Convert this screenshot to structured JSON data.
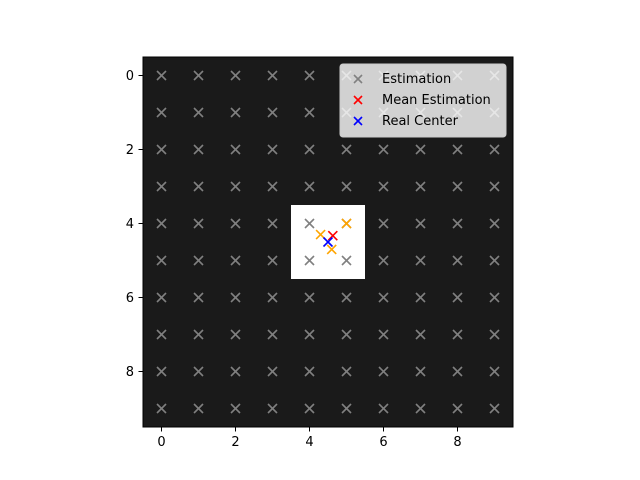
{
  "chart_data": {
    "type": "scatter",
    "title": "",
    "xlabel": "",
    "ylabel": "",
    "xlim": [
      -0.5,
      9.5
    ],
    "ylim": [
      9.5,
      -0.5
    ],
    "y_inverted": true,
    "grid": false,
    "background": {
      "type": "image",
      "rows": 10,
      "cols": 10,
      "base_color": "#1a1a1a",
      "highlight_color": "#ffffff",
      "highlight_region": {
        "x": [
          3.5,
          5.5
        ],
        "y": [
          3.5,
          5.5
        ]
      }
    },
    "xticks": [
      0,
      2,
      4,
      6,
      8
    ],
    "yticks": [
      0,
      2,
      4,
      6,
      8
    ],
    "xtick_labels": [
      "0",
      "2",
      "4",
      "6",
      "8"
    ],
    "ytick_labels": [
      "0",
      "2",
      "4",
      "6",
      "8"
    ],
    "legend": {
      "position": "upper right"
    },
    "series": [
      {
        "name": "Estimation",
        "color": "#808080",
        "marker": "x",
        "grid_points": {
          "x_from": 0,
          "x_to": 9,
          "y_from": 0,
          "y_to": 9
        }
      },
      {
        "name": "",
        "color": "#ffa500",
        "marker": "x",
        "points": [
          [
            4.3,
            4.3
          ],
          [
            5.0,
            4.0
          ],
          [
            4.6,
            4.7
          ]
        ]
      },
      {
        "name": "Mean Estimation",
        "color": "#ff0000",
        "marker": "x",
        "points": [
          [
            4.63,
            4.33
          ]
        ]
      },
      {
        "name": "Real Center",
        "color": "#0000ff",
        "marker": "x",
        "points": [
          [
            4.5,
            4.5
          ]
        ]
      }
    ]
  }
}
